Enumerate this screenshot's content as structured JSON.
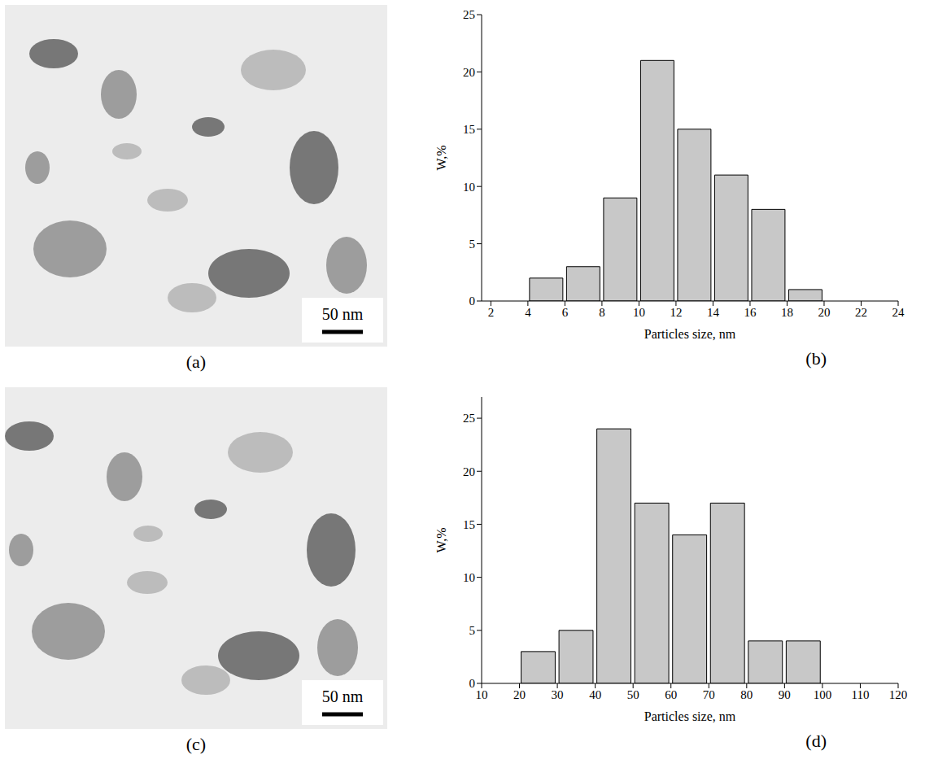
{
  "images": [
    {
      "label": "(a)",
      "scale_bar": "50 nm"
    },
    {
      "label": "(c)",
      "scale_bar": "50 nm"
    }
  ],
  "chart_data": [
    {
      "type": "histogram",
      "label": "(b)",
      "x_label": "Particles size, nm",
      "y_label": "W,%",
      "bins": [
        4,
        6,
        8,
        10,
        12,
        14,
        16,
        18,
        20
      ],
      "values": [
        2,
        3,
        9,
        21,
        15,
        11,
        8,
        1
      ],
      "color": "#c8c8c8",
      "xlim": [
        1.5,
        24
      ],
      "xticks": [
        2,
        4,
        6,
        8,
        10,
        12,
        14,
        16,
        18,
        20,
        22,
        24
      ],
      "ylim": [
        0,
        25
      ],
      "yticks": [
        0,
        5,
        10,
        15,
        20,
        25
      ],
      "grid": false
    },
    {
      "type": "histogram",
      "label": "(d)",
      "x_label": "Particles size, nm",
      "y_label": "W,%",
      "bins": [
        20,
        30,
        40,
        50,
        60,
        70,
        80,
        90,
        100
      ],
      "values": [
        3,
        5,
        24,
        17,
        14,
        17,
        4,
        4
      ],
      "color": "#c8c8c8",
      "xlim": [
        10,
        120
      ],
      "xticks": [
        10,
        20,
        30,
        40,
        50,
        60,
        70,
        80,
        90,
        100,
        110,
        120
      ],
      "ylim": [
        0,
        27
      ],
      "yticks": [
        0,
        5,
        10,
        15,
        20,
        25
      ],
      "grid": false
    }
  ]
}
